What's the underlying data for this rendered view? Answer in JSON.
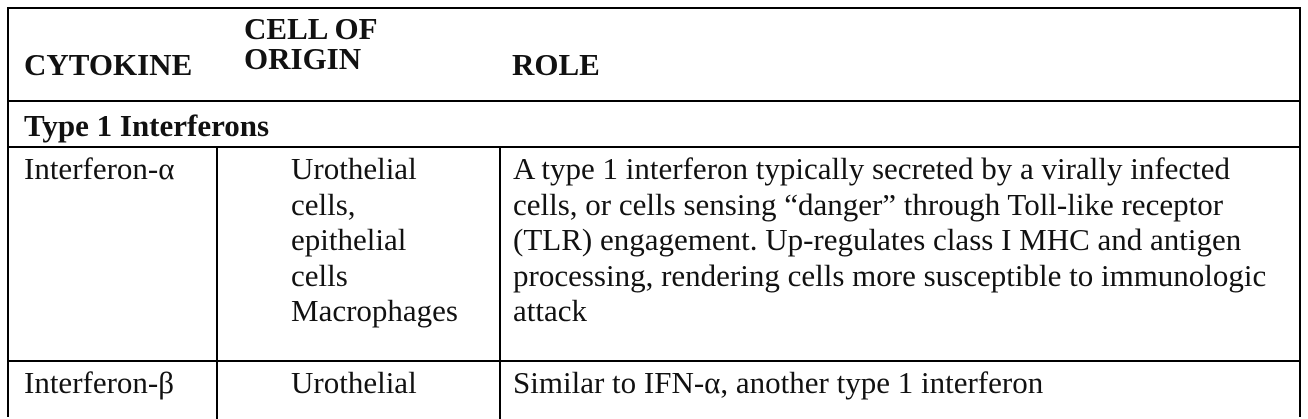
{
  "headers": {
    "cytokine": "CYTOKINE",
    "cell_of_origin": "CELL OF ORIGIN",
    "role": "ROLE"
  },
  "section": {
    "title": "Type 1 Interferons"
  },
  "rows": [
    {
      "cytokine": "Interferon-α",
      "cell_of_origin_lines": [
        "Urothelial",
        "cells,",
        "epithelial",
        "cells",
        "Macrophages"
      ],
      "role": "A type 1 interferon typically secreted by a virally infected cells, or cells sensing “danger” through Toll-like receptor (TLR) engagement. Up-regulates class I MHC and antigen processing, rendering cells more susceptible to immunologic attack"
    },
    {
      "cytokine": "Interferon-β",
      "cell_of_origin_lines": [
        "Urothelial"
      ],
      "role": "Similar to IFN-α, another type 1 interferon"
    }
  ]
}
